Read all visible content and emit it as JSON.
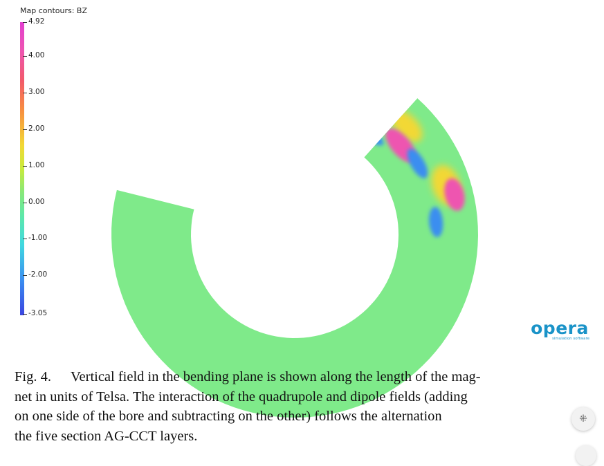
{
  "figure": {
    "scale_title": "Map contours: BZ",
    "scale_labels": [
      "4.92",
      "4.00",
      "3.00",
      "2.00",
      "1.00",
      "0.00",
      "-1.00",
      "-2.00",
      "-3.05"
    ],
    "scale_values": [
      4.92,
      4.0,
      3.0,
      2.0,
      1.0,
      0.0,
      -1.0,
      -2.0,
      -3.05
    ],
    "scale_range": [
      -3.05,
      4.92
    ],
    "colormap": [
      "#3a44e0",
      "#3a8ef0",
      "#40d8e0",
      "#5ee8a8",
      "#88e878",
      "#c8ea3c",
      "#f2d835",
      "#f78e40",
      "#f25a6a",
      "#ee55b0",
      "#e23fd0"
    ],
    "background_field_color": "#7fea8a"
  },
  "logo": {
    "word": "opera",
    "subtitle": "simulation software",
    "color": "#1a93c8"
  },
  "caption": {
    "label": "Fig. 4.",
    "lines": [
      "Vertical field in the bending plane is shown along the length of the mag-",
      "net in units of Telsa. The interaction of the quadrupole and dipole fields (adding",
      "on one side of the bore and subtracting on the other) follows the alternation",
      "the five section AG-CCT layers."
    ]
  },
  "overlay": {
    "shrink_icon": "collapse-arrows-icon",
    "shrink_glyph": "⁜"
  }
}
